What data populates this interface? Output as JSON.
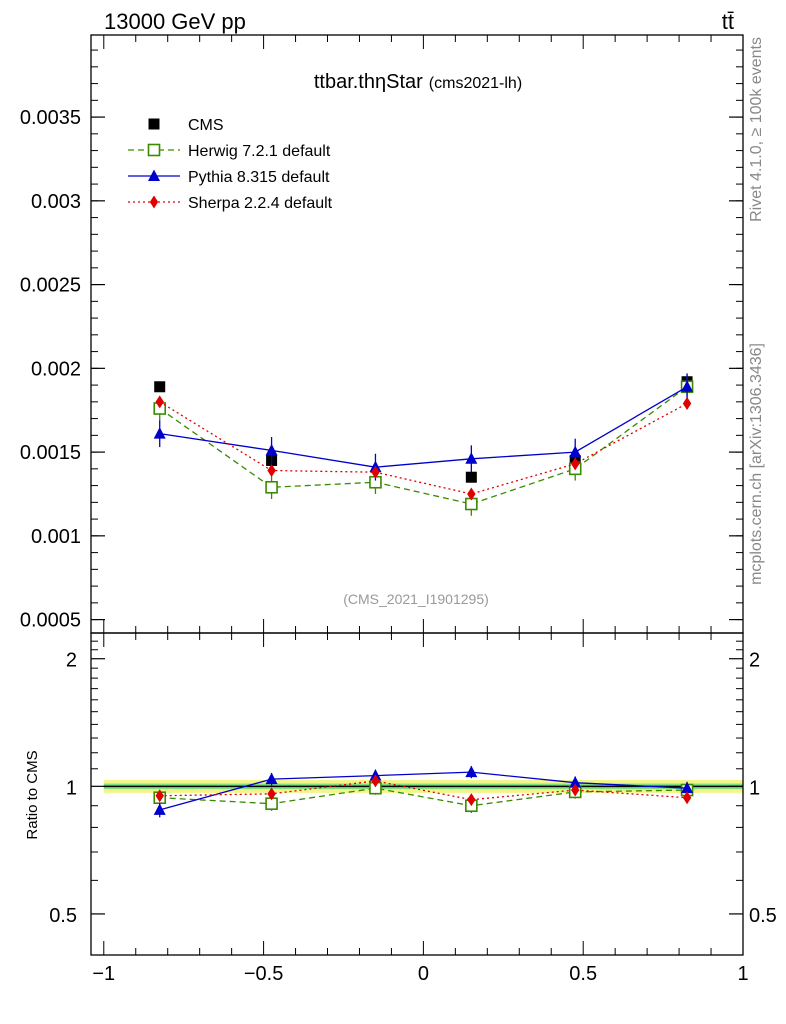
{
  "header": {
    "energy_label": "13000 GeV pp",
    "process_label": "tt̄",
    "plot_title": "ttbar.thηStar",
    "plot_subtitle": "(cms2021-lh)",
    "side_label_top": "Rivet 4.1.0, ≥ 100k events",
    "side_label_bottom": "mcplots.cern.ch [arXiv:1306.3436]",
    "watermark": "(CMS_2021_I1901295)"
  },
  "colors": {
    "cms": "#000000",
    "herwig": "#3a8a00",
    "pythia": "#0000cc",
    "sherpa": "#e00000",
    "band_inner": "#7ee07e",
    "band_outer": "#f2f58a",
    "side_text": "#888888"
  },
  "chart_data": [
    {
      "type": "line",
      "panel": "main",
      "title": "ttbar.thηStar (cms2021-lh)",
      "xlabel": "",
      "ylabel": "",
      "xlim": [
        -1.04,
        1.0
      ],
      "ylim": [
        0.00042,
        0.00399
      ],
      "yticks": [
        0.0005,
        0.001,
        0.0015,
        0.002,
        0.0025,
        0.003,
        0.0035
      ],
      "ytick_labels": [
        "0.0005",
        "0.001",
        "0.0015",
        "0.002",
        "0.0025",
        "0.003",
        "0.0035"
      ],
      "legend_position": "top-left",
      "x": [
        -0.825,
        -0.475,
        -0.15,
        0.15,
        0.475,
        0.825
      ],
      "series": [
        {
          "name": "CMS",
          "key": "cms",
          "marker": "square",
          "line": "none",
          "values": [
            0.00189,
            0.00145,
            0.00132,
            0.00135,
            0.00145,
            0.00192
          ],
          "errors": [
            2e-05,
            2e-05,
            2e-05,
            2e-05,
            2e-05,
            2e-05
          ]
        },
        {
          "name": "Herwig 7.2.1 default",
          "key": "herwig",
          "marker": "open-square",
          "line": "dashed",
          "values": [
            0.00176,
            0.00129,
            0.00132,
            0.00119,
            0.0014,
            0.00189
          ],
          "errors": [
            7e-05,
            7e-05,
            7e-05,
            7e-05,
            7e-05,
            7e-05
          ]
        },
        {
          "name": "Pythia 8.315 default",
          "key": "pythia",
          "marker": "triangle",
          "line": "solid",
          "values": [
            0.00161,
            0.00151,
            0.00141,
            0.00146,
            0.0015,
            0.00189
          ],
          "errors": [
            8e-05,
            8e-05,
            8e-05,
            8e-05,
            8e-05,
            8e-05
          ]
        },
        {
          "name": "Sherpa 2.2.4 default",
          "key": "sherpa",
          "marker": "diamond",
          "line": "dotted",
          "values": [
            0.0018,
            0.00139,
            0.00138,
            0.00125,
            0.00143,
            0.00179
          ],
          "errors": [
            3e-05,
            3e-05,
            3e-05,
            3e-05,
            3e-05,
            3e-05
          ]
        }
      ]
    },
    {
      "type": "line",
      "panel": "ratio",
      "ylabel": "Ratio to CMS",
      "xlim": [
        -1.04,
        1.0
      ],
      "ylim": [
        0.4,
        2.3
      ],
      "yscale": "log",
      "xticks": [
        -1,
        -0.5,
        0,
        0.5,
        1
      ],
      "xtick_labels": [
        "−1",
        "−0.5",
        "0",
        "0.5",
        "1"
      ],
      "yticks": [
        0.5,
        1,
        2
      ],
      "ytick_labels": [
        "0.5",
        "1",
        "2"
      ],
      "reference_band": {
        "inner": 0.015,
        "outer": 0.035
      },
      "x": [
        -0.825,
        -0.475,
        -0.15,
        0.15,
        0.475,
        0.825
      ],
      "series": [
        {
          "name": "Herwig 7.2.1 default",
          "key": "herwig",
          "marker": "open-square",
          "line": "dashed",
          "values": [
            0.94,
            0.91,
            0.99,
            0.9,
            0.97,
            0.98
          ],
          "errors": [
            0.035,
            0.035,
            0.035,
            0.035,
            0.035,
            0.035
          ]
        },
        {
          "name": "Pythia 8.315 default",
          "key": "pythia",
          "marker": "triangle",
          "line": "solid",
          "values": [
            0.88,
            1.04,
            1.06,
            1.08,
            1.02,
            0.99
          ],
          "errors": [
            0.035,
            0.035,
            0.035,
            0.035,
            0.035,
            0.035
          ]
        },
        {
          "name": "Sherpa 2.2.4 default",
          "key": "sherpa",
          "marker": "diamond",
          "line": "dotted",
          "values": [
            0.95,
            0.96,
            1.03,
            0.93,
            0.98,
            0.94
          ],
          "errors": [
            0.02,
            0.02,
            0.02,
            0.02,
            0.02,
            0.02
          ]
        }
      ]
    }
  ]
}
